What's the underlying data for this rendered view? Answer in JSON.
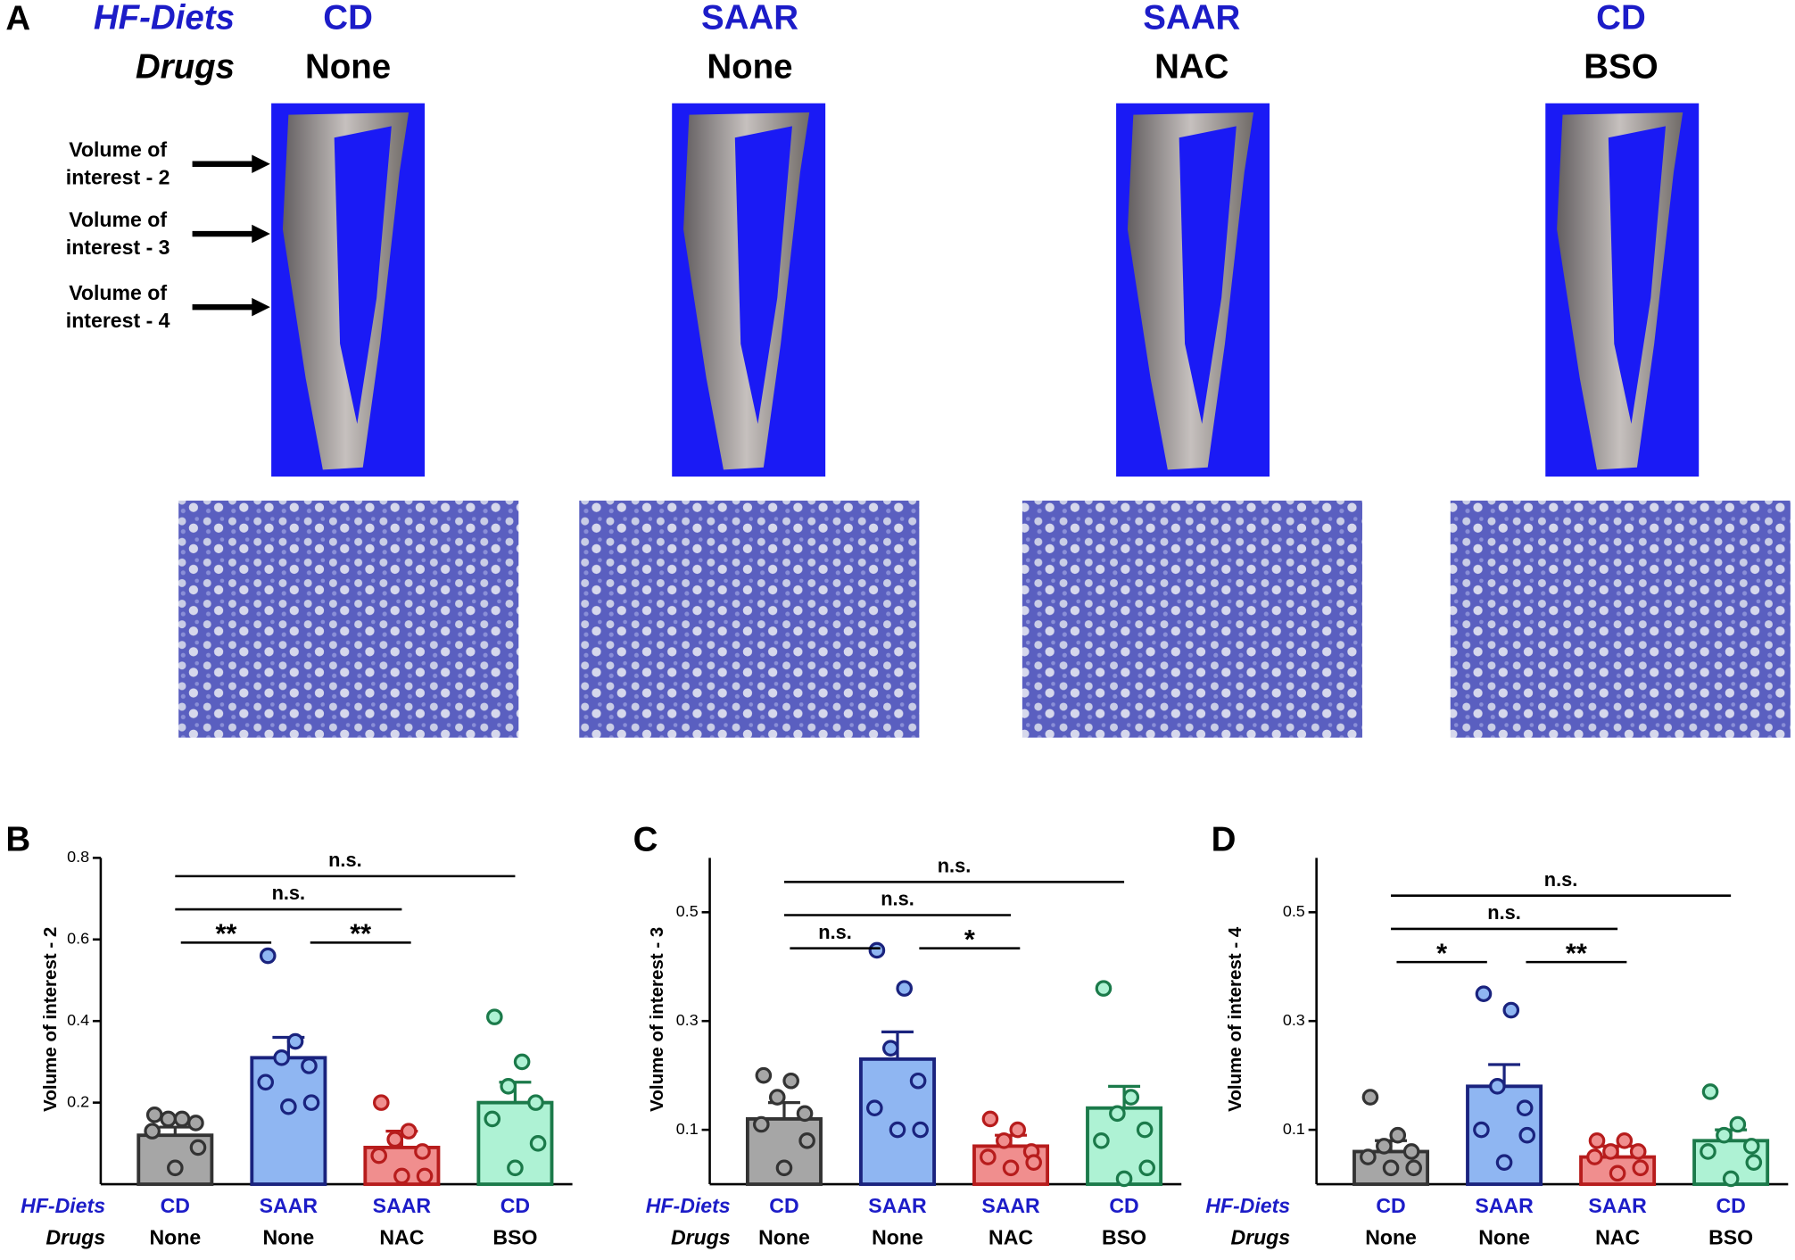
{
  "panel_a": {
    "label": "A",
    "row_labels": [
      "HF-Diets",
      "Drugs"
    ],
    "groups": [
      {
        "diet": "CD",
        "drug": "None"
      },
      {
        "diet": "SAAR",
        "drug": "None"
      },
      {
        "diet": "SAAR",
        "drug": "NAC"
      },
      {
        "diet": "CD",
        "drug": "BSO"
      }
    ],
    "arrow_labels": [
      [
        "Volume of",
        "interest - 2"
      ],
      [
        "Volume of",
        "interest - 3"
      ],
      [
        "Volume of",
        "interest - 4"
      ]
    ]
  },
  "chart_data": [
    {
      "type": "bar",
      "panel_label": "B",
      "y_label": "Volume of interest - 2",
      "ylim": [
        0,
        0.8
      ],
      "yticks": [
        0.2,
        0.4,
        0.6,
        0.8
      ],
      "row_labels": [
        "HF-Diets",
        "Drugs"
      ],
      "categories": [
        "CD",
        "SAAR",
        "SAAR",
        "CD"
      ],
      "sub_categories": [
        "None",
        "None",
        "NAC",
        "BSO"
      ],
      "values": [
        0.12,
        0.31,
        0.09,
        0.2
      ],
      "errors": [
        0.02,
        0.05,
        0.04,
        0.05
      ],
      "points": [
        [
          0.17,
          0.16,
          0.16,
          0.15,
          0.13,
          0.09,
          0.04
        ],
        [
          0.56,
          0.35,
          0.31,
          0.29,
          0.25,
          0.2,
          0.19
        ],
        [
          0.2,
          0.13,
          0.11,
          0.08,
          0.07,
          0.02,
          0.02
        ],
        [
          0.41,
          0.3,
          0.24,
          0.2,
          0.16,
          0.1,
          0.04
        ]
      ],
      "bar_colors": [
        "#a6a6a6",
        "#8fb6f2",
        "#f08e8e",
        "#aef2d4"
      ],
      "edge_colors": [
        "#333333",
        "#1a237e",
        "#b71c1c",
        "#1b7a4a"
      ],
      "significance": [
        {
          "from": 0,
          "to": 3,
          "label": "n.s."
        },
        {
          "from": 0,
          "to": 2,
          "label": "n.s."
        },
        {
          "from": 0,
          "to": 1,
          "label": "**"
        },
        {
          "from": 1,
          "to": 2,
          "label": "**"
        }
      ]
    },
    {
      "type": "bar",
      "panel_label": "C",
      "y_label": "Volume of interest - 3",
      "ylim": [
        0,
        0.6
      ],
      "yticks": [
        0.1,
        0.3,
        0.5
      ],
      "row_labels": [
        "HF-Diets",
        "Drugs"
      ],
      "categories": [
        "CD",
        "SAAR",
        "SAAR",
        "CD"
      ],
      "sub_categories": [
        "None",
        "None",
        "NAC",
        "BSO"
      ],
      "values": [
        0.12,
        0.23,
        0.07,
        0.14
      ],
      "errors": [
        0.03,
        0.05,
        0.02,
        0.04
      ],
      "points": [
        [
          0.2,
          0.19,
          0.16,
          0.13,
          0.11,
          0.08,
          0.03
        ],
        [
          0.43,
          0.36,
          0.25,
          0.19,
          0.14,
          0.1,
          0.1
        ],
        [
          0.12,
          0.1,
          0.08,
          0.06,
          0.05,
          0.04,
          0.03
        ],
        [
          0.36,
          0.16,
          0.13,
          0.1,
          0.08,
          0.03,
          0.01
        ]
      ],
      "bar_colors": [
        "#a6a6a6",
        "#8fb6f2",
        "#f08e8e",
        "#aef2d4"
      ],
      "edge_colors": [
        "#333333",
        "#1a237e",
        "#b71c1c",
        "#1b7a4a"
      ],
      "significance": [
        {
          "from": 0,
          "to": 3,
          "label": "n.s."
        },
        {
          "from": 0,
          "to": 2,
          "label": "n.s."
        },
        {
          "from": 0,
          "to": 1,
          "label": "n.s."
        },
        {
          "from": 1,
          "to": 2,
          "label": "*"
        }
      ]
    },
    {
      "type": "bar",
      "panel_label": "D",
      "y_label": "Volume of interest - 4",
      "ylim": [
        0,
        0.6
      ],
      "yticks": [
        0.1,
        0.3,
        0.5
      ],
      "row_labels": [
        "HF-Diets",
        "Drugs"
      ],
      "categories": [
        "CD",
        "SAAR",
        "SAAR",
        "CD"
      ],
      "sub_categories": [
        "None",
        "None",
        "NAC",
        "BSO"
      ],
      "values": [
        0.06,
        0.18,
        0.05,
        0.08
      ],
      "errors": [
        0.02,
        0.04,
        0.02,
        0.02
      ],
      "points": [
        [
          0.16,
          0.09,
          0.07,
          0.06,
          0.05,
          0.03,
          0.03
        ],
        [
          0.35,
          0.32,
          0.18,
          0.14,
          0.1,
          0.09,
          0.04
        ],
        [
          0.08,
          0.08,
          0.06,
          0.06,
          0.05,
          0.03,
          0.02
        ],
        [
          0.17,
          0.11,
          0.09,
          0.07,
          0.06,
          0.04,
          0.01
        ]
      ],
      "bar_colors": [
        "#a6a6a6",
        "#8fb6f2",
        "#f08e8e",
        "#aef2d4"
      ],
      "edge_colors": [
        "#333333",
        "#1a237e",
        "#b71c1c",
        "#1b7a4a"
      ],
      "significance": [
        {
          "from": 0,
          "to": 3,
          "label": "n.s."
        },
        {
          "from": 0,
          "to": 2,
          "label": "n.s."
        },
        {
          "from": 0,
          "to": 1,
          "label": "*"
        },
        {
          "from": 1,
          "to": 2,
          "label": "**"
        }
      ]
    }
  ]
}
